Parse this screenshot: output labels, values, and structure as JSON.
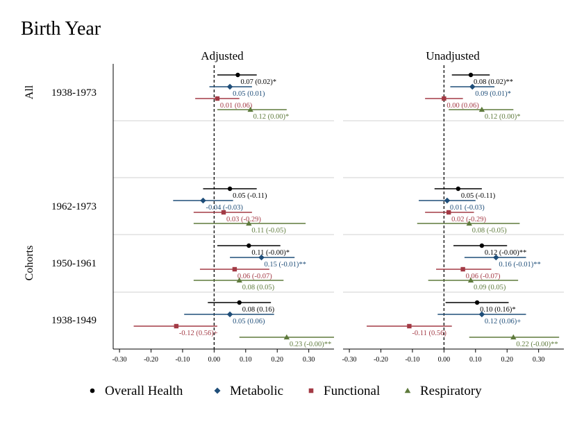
{
  "chart_data": {
    "type": "scatter",
    "subtype": "coefficient-plot",
    "title": "Birth Year",
    "panels": [
      "Adjusted",
      "Unadjusted"
    ],
    "groups": [
      {
        "name": "All",
        "rows": [
          "1938-1973"
        ]
      },
      {
        "name": "Cohorts",
        "rows": [
          "1962-1973",
          "1950-1961",
          "1938-1949"
        ]
      }
    ],
    "xlim": [
      -0.32,
      0.38
    ],
    "xticks": [
      "-0.30",
      "-0.20",
      "-0.10",
      "0.00",
      "0.10",
      "0.20",
      "0.30"
    ],
    "xtick_values": [
      -0.3,
      -0.2,
      -0.1,
      0.0,
      0.1,
      0.2,
      0.3
    ],
    "reference_line": 0,
    "series": [
      {
        "name": "Overall Health",
        "color": "#000000",
        "marker": "circle"
      },
      {
        "name": "Metabolic",
        "color": "#1f4e79",
        "marker": "diamond"
      },
      {
        "name": "Functional",
        "color": "#a33a45",
        "marker": "square"
      },
      {
        "name": "Respiratory",
        "color": "#5e7a3c",
        "marker": "triangle"
      }
    ],
    "legend_position": "bottom",
    "points": [
      {
        "panel": 0,
        "row": "1938-1973",
        "series": 0,
        "est": 0.075,
        "lo": 0.01,
        "hi": 0.135,
        "label": "0.07 (0.02)*"
      },
      {
        "panel": 0,
        "row": "1938-1973",
        "series": 1,
        "est": 0.05,
        "lo": -0.015,
        "hi": 0.12,
        "label": "0.05 (0.01)"
      },
      {
        "panel": 0,
        "row": "1938-1973",
        "series": 2,
        "est": 0.01,
        "lo": -0.06,
        "hi": 0.08,
        "label": "0.01 (0.06)"
      },
      {
        "panel": 0,
        "row": "1938-1973",
        "series": 3,
        "est": 0.115,
        "lo": 0.01,
        "hi": 0.23,
        "label": "0.12 (0.00)*"
      },
      {
        "panel": 0,
        "row": "1962-1973",
        "series": 0,
        "est": 0.05,
        "lo": -0.035,
        "hi": 0.135,
        "label": "0.05 (-0.11)"
      },
      {
        "panel": 0,
        "row": "1962-1973",
        "series": 1,
        "est": -0.035,
        "lo": -0.13,
        "hi": 0.06,
        "label": "-0.04 (-0.03)"
      },
      {
        "panel": 0,
        "row": "1962-1973",
        "series": 2,
        "est": 0.03,
        "lo": -0.065,
        "hi": 0.12,
        "label": "0.03 (-0.29)"
      },
      {
        "panel": 0,
        "row": "1962-1973",
        "series": 3,
        "est": 0.11,
        "lo": -0.065,
        "hi": 0.29,
        "label": "0.11 (-0.05)"
      },
      {
        "panel": 0,
        "row": "1950-1961",
        "series": 0,
        "est": 0.11,
        "lo": 0.01,
        "hi": 0.21,
        "label": "0.11 (-0.00)*"
      },
      {
        "panel": 0,
        "row": "1950-1961",
        "series": 1,
        "est": 0.15,
        "lo": 0.05,
        "hi": 0.255,
        "label": "0.15 (-0.01)**"
      },
      {
        "panel": 0,
        "row": "1950-1961",
        "series": 2,
        "est": 0.065,
        "lo": -0.045,
        "hi": 0.175,
        "label": "0.06 (-0.07)"
      },
      {
        "panel": 0,
        "row": "1950-1961",
        "series": 3,
        "est": 0.08,
        "lo": -0.065,
        "hi": 0.22,
        "label": "0.08 (0.05)"
      },
      {
        "panel": 0,
        "row": "1938-1949",
        "series": 0,
        "est": 0.08,
        "lo": -0.02,
        "hi": 0.18,
        "label": "0.08 (0.16)"
      },
      {
        "panel": 0,
        "row": "1938-1949",
        "series": 1,
        "est": 0.05,
        "lo": -0.095,
        "hi": 0.19,
        "label": "0.05 (0.06)"
      },
      {
        "panel": 0,
        "row": "1938-1949",
        "series": 2,
        "est": -0.12,
        "lo": -0.255,
        "hi": 0.01,
        "label": "-0.12 (0.56)+"
      },
      {
        "panel": 0,
        "row": "1938-1949",
        "series": 3,
        "est": 0.23,
        "lo": 0.08,
        "hi": 0.38,
        "label": "0.23 (-0.00)**"
      },
      {
        "panel": 1,
        "row": "1938-1973",
        "series": 0,
        "est": 0.085,
        "lo": 0.025,
        "hi": 0.145,
        "label": "0.08 (0.02)**"
      },
      {
        "panel": 1,
        "row": "1938-1973",
        "series": 1,
        "est": 0.09,
        "lo": 0.02,
        "hi": 0.16,
        "label": "0.09 (0.01)*"
      },
      {
        "panel": 1,
        "row": "1938-1973",
        "series": 2,
        "est": 0.0,
        "lo": -0.06,
        "hi": 0.06,
        "label": "0.00 (0.06)"
      },
      {
        "panel": 1,
        "row": "1938-1973",
        "series": 3,
        "est": 0.12,
        "lo": 0.015,
        "hi": 0.22,
        "label": "0.12 (0.00)*"
      },
      {
        "panel": 1,
        "row": "1962-1973",
        "series": 0,
        "est": 0.045,
        "lo": -0.03,
        "hi": 0.12,
        "label": "0.05 (-0.11)"
      },
      {
        "panel": 1,
        "row": "1962-1973",
        "series": 1,
        "est": 0.01,
        "lo": -0.08,
        "hi": 0.1,
        "label": "0.01 (-0.03)"
      },
      {
        "panel": 1,
        "row": "1962-1973",
        "series": 2,
        "est": 0.015,
        "lo": -0.06,
        "hi": 0.095,
        "label": "0.02 (-0.29)"
      },
      {
        "panel": 1,
        "row": "1962-1973",
        "series": 3,
        "est": 0.08,
        "lo": -0.085,
        "hi": 0.24,
        "label": "0.08 (-0.05)"
      },
      {
        "panel": 1,
        "row": "1950-1961",
        "series": 0,
        "est": 0.12,
        "lo": 0.03,
        "hi": 0.2,
        "label": "0.12 (-0.00)**"
      },
      {
        "panel": 1,
        "row": "1950-1961",
        "series": 1,
        "est": 0.165,
        "lo": 0.065,
        "hi": 0.26,
        "label": "0.16 (-0.01)**"
      },
      {
        "panel": 1,
        "row": "1950-1961",
        "series": 2,
        "est": 0.06,
        "lo": -0.025,
        "hi": 0.15,
        "label": "0.06 (-0.07)"
      },
      {
        "panel": 1,
        "row": "1950-1961",
        "series": 3,
        "est": 0.085,
        "lo": -0.05,
        "hi": 0.235,
        "label": "0.09 (0.05)"
      },
      {
        "panel": 1,
        "row": "1938-1949",
        "series": 0,
        "est": 0.105,
        "lo": 0.005,
        "hi": 0.205,
        "label": "0.10 (0.16)*"
      },
      {
        "panel": 1,
        "row": "1938-1949",
        "series": 1,
        "est": 0.12,
        "lo": -0.02,
        "hi": 0.26,
        "label": "0.12 (0.06)+"
      },
      {
        "panel": 1,
        "row": "1938-1949",
        "series": 2,
        "est": -0.11,
        "lo": -0.245,
        "hi": 0.025,
        "label": "-0.11 (0.56)"
      },
      {
        "panel": 1,
        "row": "1938-1949",
        "series": 3,
        "est": 0.22,
        "lo": 0.08,
        "hi": 0.365,
        "label": "0.22 (-0.00)**"
      }
    ]
  }
}
